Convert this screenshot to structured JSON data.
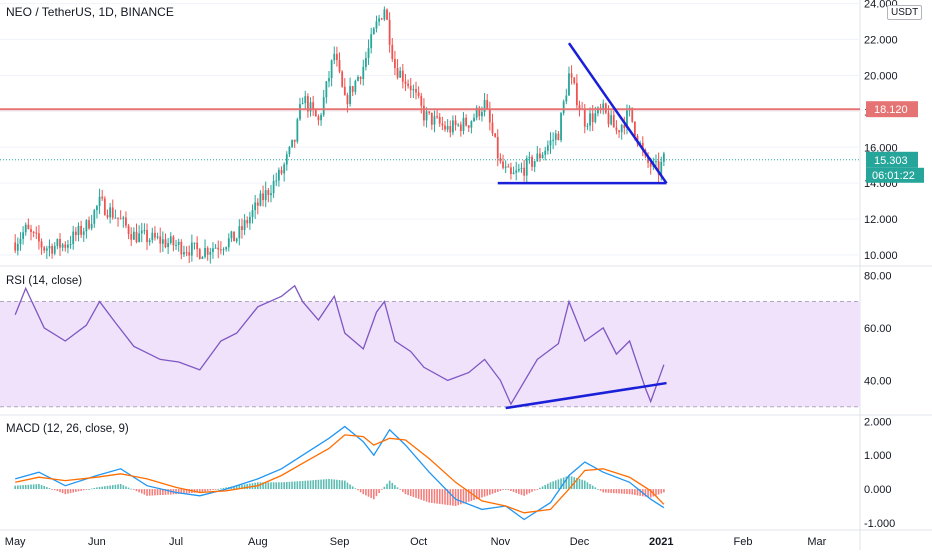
{
  "header": {
    "symbol_title": "NEO / TetherUS, 1D, BINANCE",
    "currency_badge": "USDT"
  },
  "colors": {
    "up": "#26a69a",
    "down": "#ef5350",
    "trend": "#1a1fd8",
    "resistance": "#e57373",
    "rsi_line": "#7e57c2",
    "rsi_band": "#f0e2fb",
    "macd_line": "#2196f3",
    "signal_line": "#ff6d00",
    "last_price": "#26a69a"
  },
  "chart_data": [
    {
      "type": "candlestick",
      "title": "NEO / TetherUS, 1D, BINANCE",
      "x_tick_labels": [
        "May",
        "Jun",
        "Jul",
        "Aug",
        "Sep",
        "Oct",
        "Nov",
        "Dec",
        "2021",
        "Feb",
        "Mar"
      ],
      "y_tick_labels": [
        "10.000",
        "12.000",
        "14.000",
        "16.000",
        "18.000",
        "20.000",
        "22.000",
        "24.000"
      ],
      "ylim": [
        9.5,
        24.2
      ],
      "close_path": [
        [
          "2020-05-01",
          10.7
        ],
        [
          "2020-05-05",
          11.4
        ],
        [
          "2020-05-12",
          10.4
        ],
        [
          "2020-05-20",
          10.6
        ],
        [
          "2020-05-28",
          11.6
        ],
        [
          "2020-06-02",
          12.9
        ],
        [
          "2020-06-08",
          12.2
        ],
        [
          "2020-06-15",
          11.1
        ],
        [
          "2020-06-25",
          10.8
        ],
        [
          "2020-07-02",
          10.5
        ],
        [
          "2020-07-10",
          10.2
        ],
        [
          "2020-07-18",
          10.6
        ],
        [
          "2020-07-24",
          11.0
        ],
        [
          "2020-08-01",
          12.8
        ],
        [
          "2020-08-10",
          14.6
        ],
        [
          "2020-08-15",
          16.4
        ],
        [
          "2020-08-18",
          18.8
        ],
        [
          "2020-08-24",
          17.4
        ],
        [
          "2020-08-30",
          21.2
        ],
        [
          "2020-09-03",
          18.5
        ],
        [
          "2020-09-10",
          20.5
        ],
        [
          "2020-09-15",
          22.8
        ],
        [
          "2020-09-18",
          23.8
        ],
        [
          "2020-09-22",
          20.5
        ],
        [
          "2020-09-28",
          19.4
        ],
        [
          "2020-10-03",
          17.8
        ],
        [
          "2020-10-12",
          17.0
        ],
        [
          "2020-10-20",
          17.4
        ],
        [
          "2020-10-26",
          18.4
        ],
        [
          "2020-11-01",
          15.0
        ],
        [
          "2020-11-05",
          14.3
        ],
        [
          "2020-11-15",
          15.4
        ],
        [
          "2020-11-23",
          16.8
        ],
        [
          "2020-11-27",
          20.0
        ],
        [
          "2020-12-03",
          17.5
        ],
        [
          "2020-12-10",
          18.0
        ],
        [
          "2020-12-15",
          16.9
        ],
        [
          "2020-12-20",
          17.9
        ],
        [
          "2020-12-26",
          15.2
        ],
        [
          "2020-12-31",
          14.7
        ],
        [
          "2021-01-02",
          15.3
        ]
      ],
      "resistance_line": 18.12,
      "last_price": 15.303,
      "price_labels": [
        "18.120",
        "15.303"
      ],
      "countdown": "06:01:22",
      "annotations": {
        "triangle_descending": [
          [
            "2020-11-27",
            21.8
          ],
          [
            "2021-01-03",
            14.0
          ]
        ],
        "triangle_base": [
          [
            "2020-10-31",
            14.0
          ],
          [
            "2021-01-03",
            14.0
          ]
        ]
      }
    },
    {
      "type": "line",
      "title": "RSI (14, close)",
      "y_tick_labels": [
        "40.00",
        "60.00",
        "80.00"
      ],
      "ylim": [
        28,
        82
      ],
      "band": [
        30,
        70
      ],
      "series": [
        {
          "name": "RSI (14, close)",
          "points": [
            [
              "2020-05-01",
              65
            ],
            [
              "2020-05-05",
              75
            ],
            [
              "2020-05-12",
              60
            ],
            [
              "2020-05-20",
              55
            ],
            [
              "2020-05-28",
              61
            ],
            [
              "2020-06-02",
              70
            ],
            [
              "2020-06-08",
              62
            ],
            [
              "2020-06-15",
              53
            ],
            [
              "2020-06-25",
              48
            ],
            [
              "2020-07-02",
              47
            ],
            [
              "2020-07-10",
              44
            ],
            [
              "2020-07-18",
              55
            ],
            [
              "2020-07-24",
              58
            ],
            [
              "2020-08-01",
              68
            ],
            [
              "2020-08-10",
              72
            ],
            [
              "2020-08-15",
              76
            ],
            [
              "2020-08-18",
              70
            ],
            [
              "2020-08-24",
              63
            ],
            [
              "2020-08-30",
              72
            ],
            [
              "2020-09-03",
              58
            ],
            [
              "2020-09-10",
              52
            ],
            [
              "2020-09-15",
              66
            ],
            [
              "2020-09-18",
              70
            ],
            [
              "2020-09-22",
              55
            ],
            [
              "2020-09-28",
              51
            ],
            [
              "2020-10-03",
              45
            ],
            [
              "2020-10-12",
              40
            ],
            [
              "2020-10-20",
              43
            ],
            [
              "2020-10-26",
              48
            ],
            [
              "2020-11-01",
              40
            ],
            [
              "2020-11-05",
              31
            ],
            [
              "2020-11-15",
              48
            ],
            [
              "2020-11-23",
              54
            ],
            [
              "2020-11-27",
              70
            ],
            [
              "2020-12-03",
              55
            ],
            [
              "2020-12-10",
              60
            ],
            [
              "2020-12-15",
              50
            ],
            [
              "2020-12-20",
              55
            ],
            [
              "2020-12-26",
              37
            ],
            [
              "2020-12-28",
              32
            ],
            [
              "2021-01-02",
              46
            ]
          ]
        }
      ],
      "annotations": {
        "rsi_trendline": [
          [
            "2020-11-03",
            29.5
          ],
          [
            "2021-01-03",
            39.0
          ]
        ]
      }
    },
    {
      "type": "line",
      "title": "MACD (12, 26, close, 9)",
      "y_tick_labels": [
        "-1.000",
        "0.000",
        "1.000",
        "2.000"
      ],
      "ylim": [
        -1.15,
        2.1
      ],
      "series": [
        {
          "name": "MACD",
          "points": [
            [
              "2020-05-01",
              0.3
            ],
            [
              "2020-05-10",
              0.5
            ],
            [
              "2020-05-20",
              0.1
            ],
            [
              "2020-06-01",
              0.4
            ],
            [
              "2020-06-10",
              0.6
            ],
            [
              "2020-06-20",
              0.1
            ],
            [
              "2020-07-01",
              -0.1
            ],
            [
              "2020-07-10",
              -0.2
            ],
            [
              "2020-07-20",
              0.0
            ],
            [
              "2020-08-01",
              0.3
            ],
            [
              "2020-08-10",
              0.6
            ],
            [
              "2020-08-20",
              1.1
            ],
            [
              "2020-08-28",
              1.5
            ],
            [
              "2020-09-03",
              1.85
            ],
            [
              "2020-09-10",
              1.4
            ],
            [
              "2020-09-14",
              1.0
            ],
            [
              "2020-09-20",
              1.75
            ],
            [
              "2020-09-26",
              1.3
            ],
            [
              "2020-10-05",
              0.5
            ],
            [
              "2020-10-15",
              -0.3
            ],
            [
              "2020-10-25",
              -0.6
            ],
            [
              "2020-11-03",
              -0.5
            ],
            [
              "2020-11-10",
              -0.9
            ],
            [
              "2020-11-20",
              -0.4
            ],
            [
              "2020-11-27",
              0.4
            ],
            [
              "2020-12-03",
              0.8
            ],
            [
              "2020-12-10",
              0.5
            ],
            [
              "2020-12-20",
              0.2
            ],
            [
              "2020-12-28",
              -0.3
            ],
            [
              "2021-01-02",
              -0.55
            ]
          ]
        },
        {
          "name": "Signal",
          "points": [
            [
              "2020-05-01",
              0.2
            ],
            [
              "2020-05-10",
              0.35
            ],
            [
              "2020-05-20",
              0.25
            ],
            [
              "2020-06-01",
              0.35
            ],
            [
              "2020-06-10",
              0.45
            ],
            [
              "2020-06-20",
              0.3
            ],
            [
              "2020-07-01",
              0.05
            ],
            [
              "2020-07-10",
              -0.1
            ],
            [
              "2020-07-20",
              -0.05
            ],
            [
              "2020-08-01",
              0.1
            ],
            [
              "2020-08-10",
              0.4
            ],
            [
              "2020-08-20",
              0.85
            ],
            [
              "2020-08-28",
              1.2
            ],
            [
              "2020-09-03",
              1.6
            ],
            [
              "2020-09-10",
              1.55
            ],
            [
              "2020-09-14",
              1.3
            ],
            [
              "2020-09-20",
              1.5
            ],
            [
              "2020-09-26",
              1.45
            ],
            [
              "2020-10-05",
              0.9
            ],
            [
              "2020-10-15",
              0.2
            ],
            [
              "2020-10-25",
              -0.35
            ],
            [
              "2020-11-03",
              -0.5
            ],
            [
              "2020-11-10",
              -0.7
            ],
            [
              "2020-11-20",
              -0.6
            ],
            [
              "2020-11-27",
              0.0
            ],
            [
              "2020-12-03",
              0.55
            ],
            [
              "2020-12-10",
              0.6
            ],
            [
              "2020-12-20",
              0.35
            ],
            [
              "2020-12-28",
              -0.05
            ],
            [
              "2021-01-02",
              -0.45
            ]
          ]
        }
      ]
    }
  ]
}
